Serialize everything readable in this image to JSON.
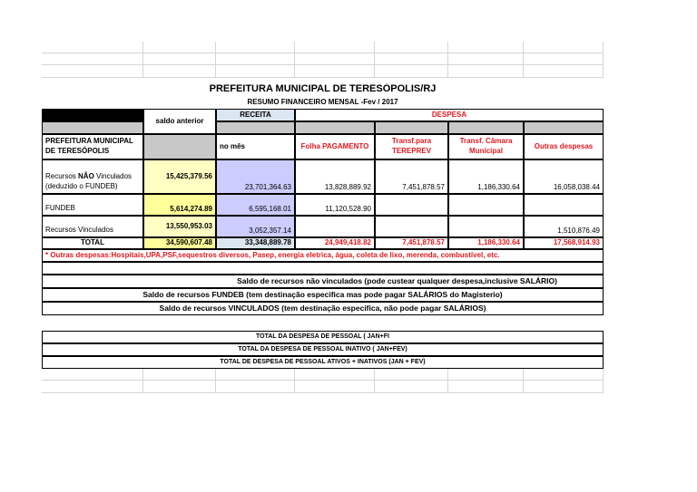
{
  "title": "PREFEITURA MUNICIPAL DE TERESÓPOLIS/RJ",
  "subtitle": "RESUMO FINANCEIRO MENSAL -Fev / 2017",
  "headers": {
    "saldo_anterior": "saldo anterior",
    "receita": "RECEITA",
    "despesa": "DESPESA",
    "entity": "PREFEITURA MUNICIPAL DE TERESÓPOLIS",
    "no_mes": "no mês",
    "folha": "Folha PAGAMENTO",
    "tereprev": "Transf.para TEREPREV",
    "camara": "Transf. Câmara Municipal",
    "outras": "Outras despesas"
  },
  "rows": [
    {
      "label_pre": "Recursos ",
      "label_bold": "NÃO",
      "label_post": " Vinculados (deduzido o FUNDEB)",
      "saldo": "15,425,379.56",
      "receita": "23,701,364.63",
      "folha": "13,828,889.92",
      "tereprev": "7,451,878.57",
      "camara": "1,186,330.64",
      "outras": "16,058,038.44"
    },
    {
      "label_pre": "FUNDEB",
      "label_bold": "",
      "label_post": "",
      "saldo": "5,614,274.89",
      "receita": "6,595,168.01",
      "folha": "11,120,528.90",
      "tereprev": "",
      "camara": "",
      "outras": ""
    },
    {
      "label_pre": "Recursos Vinculados",
      "label_bold": "",
      "label_post": "",
      "saldo": "13,550,953.03",
      "receita": "3,052,357.14",
      "folha": "",
      "tereprev": "",
      "camara": "",
      "outras": "1,510,876.49"
    }
  ],
  "total": {
    "label": "TOTAL",
    "saldo": "34,590,607.48",
    "receita": "33,348,889.78",
    "folha": "24,949,418.82",
    "tereprev": "7,451,878.57",
    "camara": "1,186,330.64",
    "outras": "17,568,914.93"
  },
  "note": "*  Outras despesas:Hospitais,UPA,PSF,sequestros diversos, Pasep, energia eletrica, água, coleta de lixo, merenda, combustível, etc.",
  "saldos": [
    "Saldo de recursos não vinculados (pode custear qualquer despesa,inclusive SALÁRIO)",
    "Saldo  de recursos FUNDEB (tem destinação especifica mas pode pagar SALÁRIOS do Magisterio)",
    "Saldo de recursos VINCULADOS (tem destinação especifica, não pode pagar SALÁRIOS)"
  ],
  "totais_pessoal": [
    "TOTAL DA DESPESA DE PESSOAL ( JAN+FI",
    "TOTAL DA DESPESA DE PESSOAL  INATIVO ( JAN+FEV)",
    "TOTAL DE  DESPESA DE PESSOAL ATIVOS + INATIVOS (JAN + FEV)"
  ],
  "colors": {
    "red": "#e0191e",
    "yellow": "#ffffc4",
    "lavender": "#ccccff",
    "gray": "#c8c8c8"
  }
}
